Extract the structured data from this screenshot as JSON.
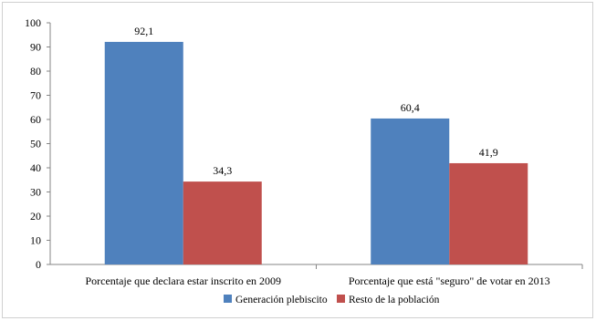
{
  "chart_data": {
    "type": "bar",
    "categories": [
      "Porcentaje que declara estar inscrito en 2009",
      "Porcentaje que está \"seguro\" de votar en 2013"
    ],
    "series": [
      {
        "name": "Generación plebiscito",
        "values": [
          92.1,
          60.4
        ],
        "labels": [
          "92,1",
          "60,4"
        ],
        "color": "#4F81BD"
      },
      {
        "name": "Resto de la población",
        "values": [
          34.3,
          41.9
        ],
        "labels": [
          "34,3",
          "41,9"
        ],
        "color": "#C0504D"
      }
    ],
    "ylim": [
      0,
      100
    ],
    "yticks": [
      0,
      10,
      20,
      30,
      40,
      50,
      60,
      70,
      80,
      90,
      100
    ],
    "legend_position": "bottom",
    "grid": false,
    "title": "",
    "xlabel": "",
    "ylabel": ""
  }
}
